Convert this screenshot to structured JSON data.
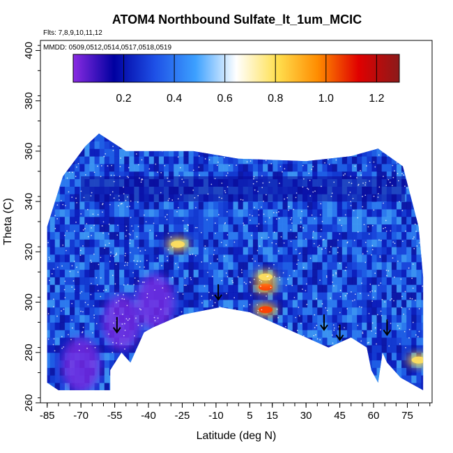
{
  "chart_data": {
    "type": "heatmap",
    "title": "ATOM4 Northbound Sulfate_lt_1um_MCIC",
    "annotations": [
      "Flts: 7,8,9,10,11,12",
      "MMDD: 0509,0512,0514,0517,0518,0519"
    ],
    "xlabel": "Latitude (deg N)",
    "ylabel": "Theta (C)",
    "xlim": [
      -88,
      86
    ],
    "ylim": [
      260,
      404
    ],
    "x_ticks": [
      -85,
      -70,
      -55,
      -40,
      -25,
      -10,
      5,
      15,
      30,
      45,
      60,
      75
    ],
    "y_ticks": [
      260,
      280,
      300,
      320,
      340,
      360,
      380,
      400
    ],
    "colorbar": {
      "min": 0.0,
      "max": 1.29,
      "ticks": [
        0.2,
        0.4,
        0.6,
        0.8,
        1.0,
        1.2
      ],
      "tick_labels": [
        "0.2",
        "0.4",
        "0.6",
        "0.8",
        "1.0",
        "1.2"
      ],
      "colors": [
        "#8a2be2",
        "#0000a0",
        "#1e50e6",
        "#3ca0ff",
        "#ffffff",
        "#ffe050",
        "#ff8c00",
        "#e00000",
        "#8b1a1a"
      ]
    },
    "domain_outline": [
      [
        -85,
        268
      ],
      [
        -85,
        330
      ],
      [
        -78,
        350
      ],
      [
        -68,
        362
      ],
      [
        -62,
        367
      ],
      [
        -50,
        360
      ],
      [
        -20,
        360
      ],
      [
        0,
        357
      ],
      [
        30,
        356
      ],
      [
        50,
        358
      ],
      [
        62,
        361
      ],
      [
        73,
        354
      ],
      [
        80,
        330
      ],
      [
        82,
        310
      ],
      [
        82,
        265
      ],
      [
        78,
        267
      ],
      [
        72,
        270
      ],
      [
        66,
        276
      ],
      [
        64,
        280
      ],
      [
        62,
        268
      ],
      [
        59,
        273
      ],
      [
        57,
        282
      ],
      [
        50,
        286
      ],
      [
        40,
        282
      ],
      [
        30,
        286
      ],
      [
        15,
        292
      ],
      [
        5,
        296
      ],
      [
        -8,
        298
      ],
      [
        -25,
        295
      ],
      [
        -38,
        290
      ],
      [
        -42,
        288
      ],
      [
        -48,
        276
      ],
      [
        -52,
        280
      ],
      [
        -57,
        273
      ],
      [
        -57,
        265
      ],
      [
        -80,
        265
      ],
      [
        -85,
        268
      ]
    ],
    "high_regions": [
      {
        "lat": 12,
        "theta": 306,
        "value": 1.0
      },
      {
        "lat": 12,
        "theta": 297,
        "value": 0.95
      },
      {
        "lat": 12,
        "theta": 310,
        "value": 0.85
      },
      {
        "lat": -27,
        "theta": 323,
        "value": 0.85
      },
      {
        "lat": 80,
        "theta": 277,
        "value": 0.9
      }
    ],
    "low_regions": [
      {
        "lat": -70,
        "theta": 275,
        "value": 0.05
      },
      {
        "lat": -52,
        "theta": 292,
        "value": 0.05
      },
      {
        "lat": -37,
        "theta": 300,
        "value": 0.1
      }
    ],
    "arrows": [
      {
        "lat": -54,
        "theta": 288
      },
      {
        "lat": -9,
        "theta": 301
      },
      {
        "lat": 38,
        "theta": 289
      },
      {
        "lat": 45,
        "theta": 285
      },
      {
        "lat": 66,
        "theta": 287
      }
    ]
  }
}
